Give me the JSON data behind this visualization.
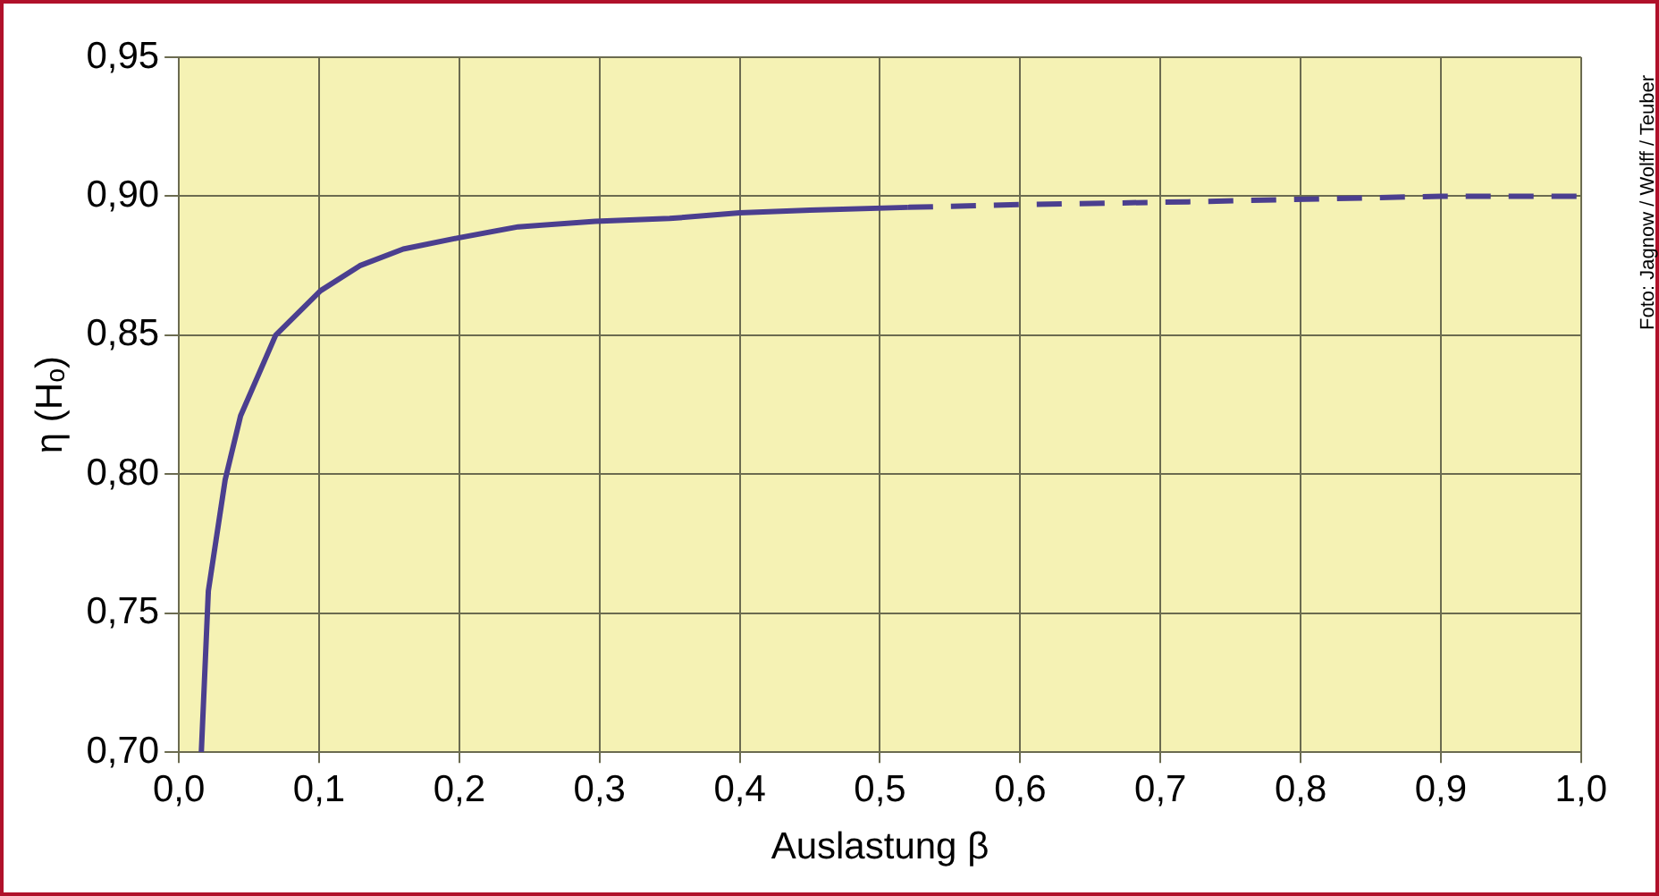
{
  "chart_data": {
    "type": "line",
    "xlabel": "Auslastung β",
    "ylabel": "η (Hₒ)",
    "annotations": [
      "Foto: Jagnow / Wolff / Teuber"
    ],
    "xlim": [
      0,
      1
    ],
    "xticks": [
      {
        "value": 0,
        "label": "0,0"
      },
      {
        "value": 0.1,
        "label": "0,1"
      },
      {
        "value": 0.2,
        "label": "0,2"
      },
      {
        "value": 0.3,
        "label": "0,3"
      },
      {
        "value": 0.4,
        "label": "0,4"
      },
      {
        "value": 0.5,
        "label": "0,5"
      },
      {
        "value": 0.6,
        "label": "0,6"
      },
      {
        "value": 0.7,
        "label": "0,7"
      },
      {
        "value": 0.8,
        "label": "0,8"
      },
      {
        "value": 0.9,
        "label": "0,9"
      },
      {
        "value": 1,
        "label": "1,0"
      }
    ],
    "ylim": [
      0.7,
      0.95
    ],
    "yticks": [
      {
        "value": 0.7,
        "label": "0,70"
      },
      {
        "value": 0.75,
        "label": "0,75"
      },
      {
        "value": 0.8,
        "label": "0,80"
      },
      {
        "value": 0.85,
        "label": "0,85"
      },
      {
        "value": 0.9,
        "label": "0,90"
      },
      {
        "value": 0.95,
        "label": "0,95"
      }
    ],
    "grid": true,
    "legend": false,
    "series": [
      {
        "color": "#4b3f8f",
        "line_style": "solid",
        "x": [
          0.016,
          0.021,
          0.033,
          0.044,
          0.069,
          0.101,
          0.129,
          0.16,
          0.199,
          0.242,
          0.297,
          0.35,
          0.4,
          0.45,
          0.52
        ],
        "values": [
          0.7,
          0.758,
          0.798,
          0.821,
          0.85,
          0.866,
          0.875,
          0.881,
          0.885,
          0.889,
          0.891,
          0.892,
          0.894,
          0.895,
          0.896
        ]
      },
      {
        "color": "#4b3f8f",
        "line_style": "dashed",
        "x": [
          0.52,
          0.6,
          0.72,
          0.9,
          1.0
        ],
        "values": [
          0.896,
          0.897,
          0.898,
          0.9,
          0.9
        ]
      }
    ]
  }
}
